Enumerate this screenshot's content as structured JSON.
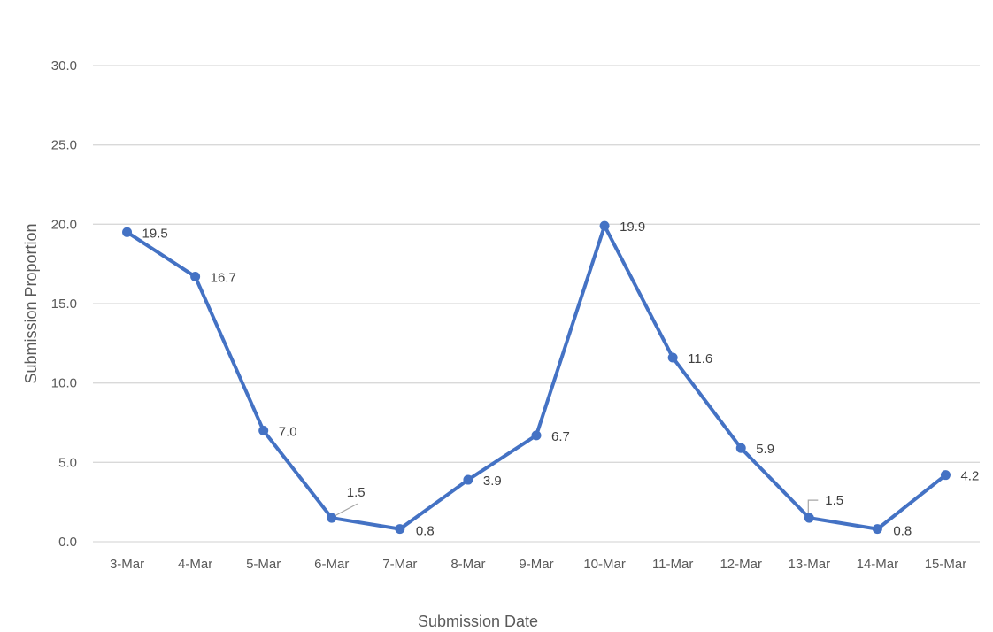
{
  "chart_data": {
    "type": "line",
    "title": "",
    "xlabel": "Submission Date",
    "ylabel": "Submission Proportion",
    "ylim": [
      0,
      30
    ],
    "yticks": [
      "0.0",
      "5.0",
      "10.0",
      "15.0",
      "20.0",
      "25.0",
      "30.0"
    ],
    "grid": true,
    "legend": "none",
    "categories": [
      "3-Mar",
      "4-Mar",
      "5-Mar",
      "6-Mar",
      "7-Mar",
      "8-Mar",
      "9-Mar",
      "10-Mar",
      "11-Mar",
      "12-Mar",
      "13-Mar",
      "14-Mar",
      "15-Mar"
    ],
    "series": [
      {
        "values": [
          19.5,
          16.7,
          7.0,
          1.5,
          0.8,
          3.9,
          6.7,
          19.9,
          11.6,
          5.9,
          1.5,
          0.8,
          4.2
        ],
        "labels": [
          "19.5",
          "16.7",
          "7.0",
          "1.5",
          "0.8",
          "3.9",
          "6.7",
          "19.9",
          "11.6",
          "5.9",
          "1.5",
          "0.8",
          "4.2"
        ],
        "color": "#4472c4"
      }
    ],
    "colors": {
      "grid": "#d9d9d9",
      "text": "#595959",
      "leader": "#a6a6a6"
    }
  }
}
